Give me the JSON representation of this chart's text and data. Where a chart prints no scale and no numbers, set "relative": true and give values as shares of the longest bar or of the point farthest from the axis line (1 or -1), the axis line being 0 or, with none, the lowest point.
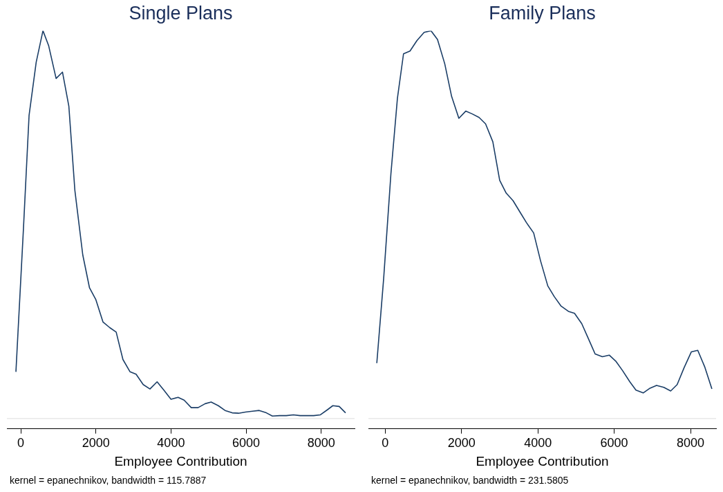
{
  "chart_data": [
    {
      "type": "line",
      "title": "Single Plans",
      "xlabel": "Employee Contribution",
      "annotations": [
        "kernel = epanechnikov, bandwidth = 115.7887"
      ],
      "relative": true,
      "grid": false,
      "legend": false,
      "marker": "none",
      "xlim": [
        -370,
        8890
      ],
      "xticks": [
        0,
        2000,
        4000,
        6000,
        8000
      ],
      "ref_lines": [
        {
          "axis": "y",
          "value": 0.026,
          "color": "#e8e8e8"
        }
      ],
      "x": [
        -130,
        70,
        220,
        410,
        590,
        740,
        940,
        1110,
        1280,
        1440,
        1650,
        1830,
        2000,
        2190,
        2370,
        2540,
        2720,
        2910,
        3070,
        3260,
        3440,
        3630,
        3810,
        4000,
        4190,
        4350,
        4540,
        4720,
        4910,
        5070,
        5260,
        5440,
        5630,
        5800,
        5980,
        6170,
        6350,
        6540,
        6700,
        6890,
        7070,
        7260,
        7440,
        7610,
        7800,
        7980,
        8170,
        8310,
        8480,
        8650
      ],
      "series": [
        {
          "color": "#1a3d66",
          "values": [
            0.143,
            0.502,
            0.787,
            0.921,
            1,
            0.963,
            0.88,
            0.896,
            0.81,
            0.599,
            0.437,
            0.354,
            0.324,
            0.268,
            0.254,
            0.243,
            0.174,
            0.143,
            0.137,
            0.111,
            0.1,
            0.118,
            0.097,
            0.074,
            0.079,
            0.072,
            0.053,
            0.053,
            0.063,
            0.067,
            0.058,
            0.046,
            0.04,
            0.039,
            0.042,
            0.044,
            0.046,
            0.04,
            0.032,
            0.033,
            0.033,
            0.035,
            0.033,
            0.033,
            0.033,
            0.035,
            0.048,
            0.058,
            0.056,
            0.04
          ]
        }
      ]
    },
    {
      "type": "line",
      "title": "Family Plans",
      "xlabel": "Employee Contribution",
      "annotations": [
        "kernel = epanechnikov, bandwidth = 231.5805"
      ],
      "relative": true,
      "grid": false,
      "legend": false,
      "marker": "none",
      "xlim": [
        -440,
        8670
      ],
      "xticks": [
        0,
        2000,
        4000,
        6000,
        8000
      ],
      "ref_lines": [
        {
          "axis": "y",
          "value": 0.026,
          "color": "#e8e8e8"
        }
      ],
      "x": [
        -220,
        -40,
        150,
        320,
        480,
        650,
        830,
        1020,
        1200,
        1370,
        1560,
        1740,
        1930,
        2110,
        2280,
        2460,
        2630,
        2820,
        3000,
        3170,
        3350,
        3540,
        3700,
        3890,
        4070,
        4260,
        4430,
        4610,
        4800,
        4960,
        5150,
        5330,
        5500,
        5690,
        5870,
        6040,
        6220,
        6410,
        6570,
        6760,
        6940,
        7110,
        7300,
        7480,
        7650,
        7830,
        8020,
        8190,
        8370,
        8560
      ],
      "series": [
        {
          "color": "#1a3d66",
          "values": [
            0.165,
            0.378,
            0.641,
            0.83,
            0.942,
            0.949,
            0.975,
            0.996,
            1,
            0.978,
            0.917,
            0.835,
            0.78,
            0.798,
            0.791,
            0.782,
            0.766,
            0.721,
            0.624,
            0.592,
            0.573,
            0.543,
            0.518,
            0.492,
            0.422,
            0.359,
            0.332,
            0.308,
            0.295,
            0.29,
            0.264,
            0.225,
            0.188,
            0.181,
            0.185,
            0.17,
            0.146,
            0.118,
            0.097,
            0.09,
            0.102,
            0.109,
            0.104,
            0.095,
            0.111,
            0.153,
            0.193,
            0.197,
            0.156,
            0.1
          ]
        }
      ]
    }
  ]
}
